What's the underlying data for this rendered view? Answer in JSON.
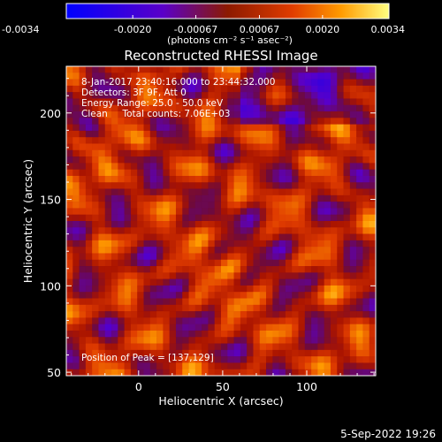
{
  "chart_data": {
    "type": "heatmap",
    "title": "Reconstructed RHESSI Image",
    "xlabel": "Heliocentric X (arcsec)",
    "ylabel": "Heliocentric Y (arcsec)",
    "xlim": [
      -43,
      141
    ],
    "ylim": [
      48,
      227
    ],
    "x_ticks": [
      0,
      50,
      100
    ],
    "y_ticks": [
      50,
      100,
      150,
      200
    ],
    "colorbar": {
      "range": [
        -0.0034,
        0.0034
      ],
      "tick_labels": [
        "-0.0034",
        "-0.0020",
        "-0.00067",
        "0.00067",
        "0.0020",
        "0.0034"
      ],
      "tick_values": [
        -0.0034,
        -0.002,
        -0.00067,
        0.00067,
        0.002,
        0.0034
      ],
      "units_label": "(photons cm⁻² s⁻¹ asec⁻²)",
      "colors": [
        "#0000ff",
        "#5a00c8",
        "#8c1a00",
        "#e03c00",
        "#ff9a00",
        "#ffff80"
      ]
    },
    "annotations": [
      "8-Jan-2017 23:40:16.000 to 23:44:32.000",
      "Detectors: 3F 9F, Att 0",
      "Energy Range: 25.0 - 50.0 keV",
      "Clean     Total counts: 7.06E+03"
    ],
    "peak_label": "Position of Peak = [137,129]",
    "peak": [
      137,
      129
    ],
    "grid": false
  },
  "footer": {
    "date": "5-Sep-2022 19:26"
  },
  "colors": {
    "background": "#000000",
    "foreground": "#ffffff"
  }
}
